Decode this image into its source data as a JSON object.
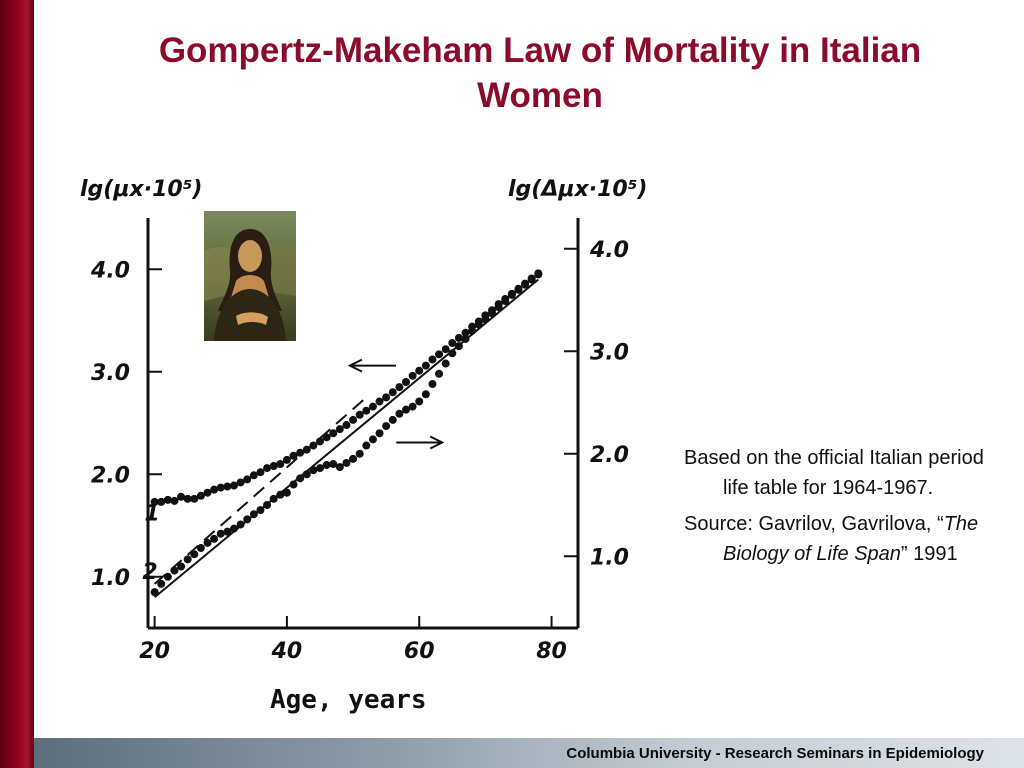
{
  "slide": {
    "title": "Gompertz-Makeham Law of Mortality in Italian Women",
    "footer": "Columbia University - Research Seminars in Epidemiology"
  },
  "side_text": {
    "p1": "Based on the official Italian period life table for 1964-1967.",
    "p2_prefix": "Source: Gavrilov, Gavrilova, “",
    "p2_book": "The Biology of Life Span",
    "p2_suffix": "” 1991"
  },
  "portrait": {
    "icon": "mona-lisa-portrait"
  },
  "colors": {
    "title": "#8b0b2a",
    "left_bar": "#8e0020",
    "footer_bg": "#8d9ba8"
  },
  "chart_data": {
    "type": "scatter",
    "xlabel": "Age, years",
    "ylabel_left": "lg(μx·10⁵)",
    "ylabel_right": "lg(Δμx·10⁵)",
    "x_ticks": [
      "20",
      "40",
      "60",
      "80"
    ],
    "y_left_ticks": [
      "1.0",
      "2.0",
      "3.0",
      "4.0"
    ],
    "y_right_ticks": [
      "1.0",
      "2.0",
      "3.0",
      "4.0"
    ],
    "xlim": [
      19,
      84
    ],
    "ylim_left": [
      0.5,
      4.5
    ],
    "ylim_right": [
      0.3,
      4.3
    ],
    "grid": false,
    "series": [
      {
        "name": "1",
        "axis": "left",
        "x": [
          20,
          21,
          22,
          23,
          24,
          25,
          26,
          27,
          28,
          29,
          30,
          31,
          32,
          33,
          34,
          35,
          36,
          37,
          38,
          39,
          40,
          41,
          42,
          43,
          44,
          45,
          46,
          47,
          48,
          49,
          50,
          51,
          52,
          53,
          54,
          55,
          56,
          57,
          58,
          59,
          60,
          61,
          62,
          63,
          64,
          65,
          66,
          67,
          68,
          69,
          70,
          71,
          72,
          73,
          74,
          75,
          76,
          77,
          78
        ],
        "y": [
          1.73,
          1.73,
          1.75,
          1.74,
          1.78,
          1.76,
          1.76,
          1.79,
          1.82,
          1.85,
          1.87,
          1.88,
          1.89,
          1.92,
          1.95,
          1.99,
          2.02,
          2.06,
          2.08,
          2.1,
          2.14,
          2.18,
          2.21,
          2.24,
          2.28,
          2.32,
          2.36,
          2.4,
          2.44,
          2.48,
          2.53,
          2.58,
          2.62,
          2.66,
          2.71,
          2.75,
          2.8,
          2.85,
          2.9,
          2.96,
          3.01,
          3.06,
          3.12,
          3.17,
          3.22,
          3.28,
          3.33,
          3.38,
          3.44,
          3.49,
          3.55,
          3.6,
          3.66,
          3.71,
          3.76,
          3.81,
          3.86,
          3.91,
          3.96
        ]
      },
      {
        "name": "2",
        "axis": "right",
        "x": [
          20,
          21,
          22,
          23,
          24,
          25,
          26,
          27,
          28,
          29,
          30,
          31,
          32,
          33,
          34,
          35,
          36,
          37,
          38,
          39,
          40,
          41,
          42,
          43,
          44,
          45,
          46,
          47,
          48,
          49,
          50,
          51,
          52,
          53,
          54,
          55,
          56,
          57,
          58,
          59,
          60,
          61,
          62,
          63,
          64,
          65,
          66,
          67,
          68,
          69,
          70,
          71,
          72,
          73,
          74,
          75,
          76,
          77,
          78
        ],
        "y": [
          0.65,
          0.73,
          0.8,
          0.86,
          0.9,
          0.97,
          1.02,
          1.08,
          1.13,
          1.17,
          1.22,
          1.24,
          1.27,
          1.31,
          1.36,
          1.41,
          1.45,
          1.5,
          1.56,
          1.6,
          1.62,
          1.7,
          1.76,
          1.8,
          1.84,
          1.86,
          1.89,
          1.9,
          1.87,
          1.91,
          1.95,
          2.0,
          2.08,
          2.14,
          2.2,
          2.27,
          2.33,
          2.39,
          2.43,
          2.46,
          2.51,
          2.58,
          2.68,
          2.78,
          2.88,
          2.98,
          3.05,
          3.12,
          3.2,
          3.26,
          3.31,
          3.37,
          3.43,
          3.49,
          3.55,
          3.6,
          3.65,
          3.7,
          3.75
        ]
      }
    ],
    "fit_lines": [
      {
        "label": "dashed",
        "axis": "left",
        "style": "dashed",
        "x": [
          20,
          52
        ],
        "y": [
          0.93,
          2.75
        ]
      },
      {
        "label": "solid",
        "axis": "right",
        "style": "solid",
        "x": [
          20,
          78
        ],
        "y": [
          0.6,
          3.7
        ]
      }
    ],
    "arrows": [
      {
        "direction": "left",
        "axis": "left",
        "x": 53,
        "y": 3.06
      },
      {
        "direction": "right",
        "axis": "left",
        "x": 60,
        "y": 2.31
      }
    ],
    "curve_labels": [
      {
        "text": "1",
        "axis": "left",
        "x": 19.6,
        "y": 1.55
      },
      {
        "text": "2",
        "axis": "right",
        "x": 19.3,
        "y": 0.78
      }
    ]
  }
}
